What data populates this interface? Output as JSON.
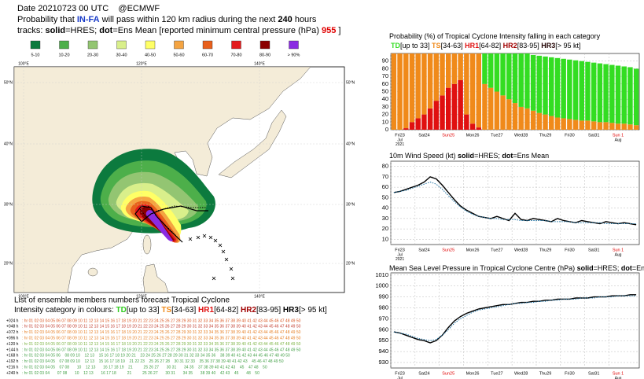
{
  "header": {
    "line1": "Date 20210723 00 UTC    @ECMWF",
    "line2": [
      {
        "text": "Probability that "
      },
      {
        "text": "IN-FA",
        "bold": true,
        "color": "#1a3cc8"
      },
      {
        "text": " will pass within 120 km radius during the next "
      },
      {
        "text": "240",
        "bold": true
      },
      {
        "text": " hours"
      }
    ],
    "line3": [
      {
        "text": "tracks: "
      },
      {
        "text": "solid",
        "bold": true
      },
      {
        "text": "=HRES; "
      },
      {
        "text": "dot",
        "bold": true
      },
      {
        "text": "=Ens Mean [reported minimum central pressure (hPa) "
      },
      {
        "text": "955",
        "bold": true,
        "color": "#e00000"
      },
      {
        "text": " ]"
      }
    ]
  },
  "legend": [
    {
      "label": "5-10",
      "color": "#0c7a3e"
    },
    {
      "label": "10-20",
      "color": "#4daf4a"
    },
    {
      "label": "20-30",
      "color": "#93c572"
    },
    {
      "label": "30-40",
      "color": "#d9ef8b"
    },
    {
      "label": "40-50",
      "color": "#ffff66"
    },
    {
      "label": "50-60",
      "color": "#f4a442"
    },
    {
      "label": "60-70",
      "color": "#e8601c"
    },
    {
      "label": "70-80",
      "color": "#e31a1c"
    },
    {
      "label": "80-90",
      "color": "#8b0000"
    },
    {
      "label": "> 90%",
      "color": "#8a2be2"
    }
  ],
  "map": {
    "lat_labels": [
      "50°N",
      "40°N",
      "30°N",
      "20°N"
    ],
    "lon_labels": [
      "100°E",
      "120°E",
      "140°E"
    ]
  },
  "ensemble_list": {
    "title": "List of ensemble members numbers forecast Tropical Cyclone",
    "subtitle": [
      {
        "text": "Intensity category in colours: "
      },
      {
        "text": "TD",
        "bold": true,
        "color": "#33cc22"
      },
      {
        "text": "[up to 33] "
      },
      {
        "text": "TS",
        "bold": true,
        "color": "#f08a1a"
      },
      {
        "text": "[34-63] "
      },
      {
        "text": "HR1",
        "bold": true,
        "color": "#e01010"
      },
      {
        "text": "[64-82] "
      },
      {
        "text": "HR2",
        "bold": true,
        "color": "#a00000"
      },
      {
        "text": "[83-95] "
      },
      {
        "text": "HR3",
        "bold": true
      },
      {
        "text": "[> 95 kt]"
      }
    ],
    "rows": [
      {
        "lead": "+024 h",
        "members": ": hr 01 02 03 04 05 06 07 08 09 10 11 12 13 14 15 16 17 18 19 20 21 22 23 24 25 26 27 28 29 30 31 32 33 34 35 36 37 38 39 40 41 42 43 44 45 46 47 48 49 50",
        "color": "#d9531e"
      },
      {
        "lead": "+048 h",
        "members": ": hr 01 02 03 04 05 06 07 08 09 10 11 12 13 14 15 16 17 18 19 20 21 22 23 24 25 26 27 28 29 30 31 32 33 34 35 36 37 38 39 40 41 42 43 44 45 46 47 48 49 50",
        "color": "#c0392b"
      },
      {
        "lead": "+072 h",
        "members": ": hr 01 02 03 04 05 06 07 08 09 10 11 12 13 14 15 16 17 18 19 20 21 22 23 24 25 26 27 28 29 30 31 32 33 34 35 36 37 38 39 40 41 42 43 44 45 46 47 48 49 50",
        "color": "#e67e22"
      },
      {
        "lead": "+096 h",
        "members": ": hr 01 02 03 04 05 06 07 08 09 10 11 12 13 14 15 16 17 18 19 20 21 22 23 24 25 26 27 28 29 30 31 32 33 34 35 36 37 38 39 40 41 42 43 44 45 46 47 48 49 50",
        "color": "#e67e22"
      },
      {
        "lead": "+120 h",
        "members": ": hr 01 02 03 04 05 06 07 08 09 10 11 12 13 14 15 16 17 18 19 20 21 22 23 24 25 26 27 28 29 30 31 32 33 34 35 36 37 38 39 40 41 42 43 44 45 46 47 48 49 50",
        "color": "#7cb342"
      },
      {
        "lead": "+144 h",
        "members": ": hr 01 02 03 04 05 06 07 08 09 10 11 12 13 14 15 16 17 18 19 20 21 22 23 24 25 26 27 28 29 30 31 32 33 34 35 36 37 38 39 40 41 42 43 44 45 46 47 48 49 50",
        "color": "#43a047"
      },
      {
        "lead": "+168 h",
        "members": ": hr 01 02 03 04 05 06    08 09 10    12 13    15 16 17 18 19 20 21    23 24 25 26 27 28 29 30 31 32 33 34 35 36    38 39 40 41 42 43 44 45 46 47 48 49 50",
        "color": "#43a047"
      },
      {
        "lead": "+192 h",
        "members": ": hr 01 02 03 04 05    07 08 09 10    12 13    15 16 17 18 19    21 22 23    25 26 27 28    30 31 32 33    35 36 37 38 39 40 41 42 43    45 46 47 48 49 50",
        "color": "#43a047"
      },
      {
        "lead": "+216 h",
        "members": ": hr 01 02 03 04 05    07 08       10    12 13       16 17 18 19    21          25 26 27       30 31       34 35    37 38 39 40 41 42 43    45    47 48    50",
        "color": "#43a047"
      },
      {
        "lead": "+240 h",
        "members": ": hr 01 02 03 04       07 08       10    12 13       16 17 18          21          25 26 27       30 31       34 35       38 39 40    42 43    45       48    50",
        "color": "#43a047"
      }
    ]
  },
  "chart_data": [
    {
      "type": "bar",
      "stacked": true,
      "title": [
        {
          "text": "Probability (%) of Tropical Cyclone Intensity falling in each category"
        }
      ],
      "categories": [
        "Fri23",
        null,
        null,
        null,
        "Sat24",
        null,
        null,
        null,
        "Sun25",
        null,
        null,
        null,
        "Mon26",
        null,
        null,
        null,
        "Tue27",
        null,
        null,
        null,
        "Wed28",
        null,
        null,
        null,
        "Thu29",
        null,
        null,
        null,
        "Fri30",
        null,
        null,
        null,
        "Sat31",
        null,
        null,
        null,
        "Sun 1",
        null,
        null,
        null,
        null
      ],
      "x_sublabels": [
        {
          "index": 0,
          "lines": [
            "Jul",
            "2021"
          ]
        },
        {
          "index": 36,
          "lines": [
            "Aug"
          ]
        }
      ],
      "ylim": [
        0,
        100
      ],
      "yticks": [
        0,
        10,
        20,
        30,
        40,
        50,
        60,
        70,
        80,
        90
      ],
      "grid": true,
      "series": [
        {
          "name": "TD",
          "range": "[up to 33]",
          "color": "#33dd22",
          "values": [
            0,
            0,
            0,
            0,
            0,
            0,
            0,
            0,
            0,
            0,
            0,
            0,
            0,
            0,
            0,
            40,
            45,
            50,
            55,
            60,
            65,
            70,
            72,
            73,
            75,
            76,
            77,
            78,
            78,
            78,
            78,
            78,
            77,
            77,
            77,
            76,
            76,
            76,
            75,
            75,
            74
          ]
        },
        {
          "name": "TS",
          "range": "[34-63]",
          "color": "#f08a1a",
          "values": [
            100,
            100,
            98,
            90,
            85,
            80,
            72,
            62,
            55,
            45,
            40,
            35,
            80,
            92,
            97,
            60,
            55,
            50,
            45,
            40,
            35,
            30,
            28,
            25,
            22,
            20,
            18,
            16,
            15,
            14,
            13,
            12,
            12,
            11,
            10,
            10,
            9,
            8,
            8,
            7,
            6
          ]
        },
        {
          "name": "HR1",
          "range": "[64-82]",
          "color": "#e01010",
          "values": [
            0,
            0,
            2,
            10,
            15,
            20,
            28,
            38,
            45,
            55,
            60,
            65,
            20,
            8,
            3,
            0,
            0,
            0,
            0,
            0,
            0,
            0,
            0,
            0,
            0,
            0,
            0,
            0,
            0,
            0,
            0,
            0,
            0,
            0,
            0,
            0,
            0,
            0,
            0,
            0,
            0
          ]
        },
        {
          "name": "HR2",
          "range": "[83-95]",
          "color": "#a00000",
          "values": [
            0,
            0,
            0,
            0,
            0,
            0,
            0,
            0,
            0,
            0,
            0,
            0,
            0,
            0,
            0,
            0,
            0,
            0,
            0,
            0,
            0,
            0,
            0,
            0,
            0,
            0,
            0,
            0,
            0,
            0,
            0,
            0,
            0,
            0,
            0,
            0,
            0,
            0,
            0,
            0,
            0
          ]
        },
        {
          "name": "HR3",
          "range": "[> 95 kt]",
          "color": "#200000",
          "values": [
            0,
            0,
            0,
            0,
            0,
            0,
            0,
            0,
            0,
            0,
            0,
            0,
            0,
            0,
            0,
            0,
            0,
            0,
            0,
            0,
            0,
            0,
            0,
            0,
            0,
            0,
            0,
            0,
            0,
            0,
            0,
            0,
            0,
            0,
            0,
            0,
            0,
            0,
            0,
            0,
            0
          ]
        }
      ]
    },
    {
      "type": "line",
      "title": [
        {
          "text": "10m Wind Speed (kt) "
        },
        {
          "text": "solid",
          "bold": true
        },
        {
          "text": "=HRES; "
        },
        {
          "text": "dot",
          "bold": true
        },
        {
          "text": "=Ens Mean"
        }
      ],
      "ylim": [
        5,
        85
      ],
      "yticks": [
        10,
        20,
        30,
        40,
        50,
        60,
        70,
        80
      ],
      "grid": true,
      "series": [
        {
          "name": "HRES",
          "style": "solid",
          "color": "#000000",
          "values": [
            55,
            56,
            58,
            60,
            62,
            65,
            70,
            68,
            62,
            55,
            48,
            42,
            38,
            35,
            32,
            31,
            30,
            32,
            30,
            28,
            35,
            29,
            28,
            30,
            29,
            28,
            27,
            30,
            28,
            27,
            26,
            28,
            27,
            26,
            25,
            27,
            26,
            25,
            26,
            25,
            24
          ]
        },
        {
          "name": "Ens Mean",
          "style": "dot",
          "color": "#1a6fa0",
          "values": [
            55,
            56,
            57,
            59,
            61,
            63,
            65,
            63,
            58,
            52,
            46,
            41,
            37,
            34,
            32,
            31,
            30,
            30,
            29,
            29,
            29,
            28,
            28,
            28,
            28,
            28,
            27,
            27,
            27,
            27,
            26,
            26,
            26,
            26,
            26,
            25,
            25,
            25,
            25,
            25,
            25
          ]
        }
      ]
    },
    {
      "type": "line",
      "title": [
        {
          "text": "Mean Sea Level Pressure in Tropical Cyclone Centre (hPa) "
        },
        {
          "text": "solid",
          "bold": true
        },
        {
          "text": "=HRES; "
        },
        {
          "text": "dot",
          "bold": true
        },
        {
          "text": "=Ens Mean"
        }
      ],
      "ylim": [
        925,
        1012
      ],
      "yticks": [
        930,
        940,
        950,
        960,
        970,
        980,
        990,
        1000,
        1010
      ],
      "grid": true,
      "series": [
        {
          "name": "HRES",
          "style": "solid",
          "color": "#000000",
          "values": [
            958,
            957,
            955,
            953,
            951,
            950,
            948,
            950,
            955,
            962,
            968,
            972,
            975,
            977,
            979,
            980,
            981,
            982,
            983,
            983,
            984,
            985,
            985,
            986,
            986,
            987,
            987,
            988,
            988,
            988,
            989,
            989,
            989,
            990,
            990,
            990,
            991,
            991,
            991,
            992,
            992
          ]
        },
        {
          "name": "Ens Mean",
          "style": "dot",
          "color": "#1a6fa0",
          "values": [
            958,
            957,
            956,
            954,
            952,
            951,
            950,
            951,
            955,
            960,
            966,
            970,
            973,
            976,
            978,
            979,
            980,
            981,
            982,
            983,
            984,
            984,
            985,
            985,
            986,
            986,
            987,
            987,
            988,
            988,
            988,
            989,
            989,
            989,
            990,
            990,
            990,
            991,
            991,
            991,
            991
          ]
        }
      ]
    }
  ]
}
